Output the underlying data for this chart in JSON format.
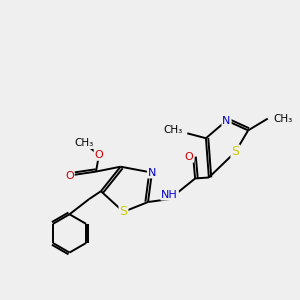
{
  "bg_color": "#efefef",
  "atom_colors": {
    "C": "#000000",
    "N": "#0000cc",
    "O": "#cc0000",
    "S": "#cccc00",
    "H": "#000000"
  },
  "font_size": 8,
  "line_width": 1.4,
  "figsize": [
    3.0,
    3.0
  ],
  "dpi": 100,
  "xlim": [
    0,
    10
  ],
  "ylim": [
    0,
    10
  ]
}
